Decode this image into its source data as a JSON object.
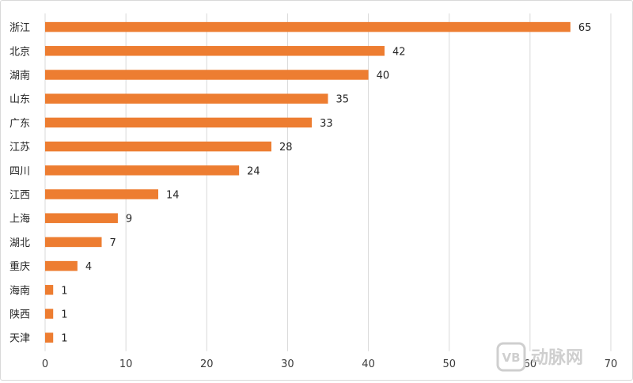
{
  "chart_data": {
    "type": "bar",
    "orientation": "horizontal",
    "categories": [
      "浙江",
      "北京",
      "湖南",
      "山东",
      "广东",
      "江苏",
      "四川",
      "江西",
      "上海",
      "湖北",
      "重庆",
      "海南",
      "陕西",
      "天津"
    ],
    "values": [
      65,
      42,
      40,
      35,
      33,
      28,
      24,
      14,
      9,
      7,
      4,
      1,
      1,
      1
    ],
    "xlim": [
      0,
      70
    ],
    "xticks": [
      0,
      10,
      20,
      30,
      40,
      50,
      60,
      70
    ],
    "grid": true,
    "data_labels": true,
    "bar_color": "#ED7D31",
    "grid_color": "#d9d9d9"
  },
  "watermark": {
    "text": "动脉网",
    "logo_text": "VB"
  }
}
